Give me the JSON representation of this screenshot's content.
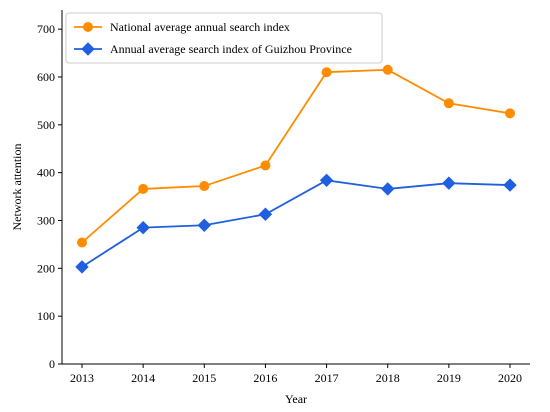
{
  "chart_data": {
    "type": "line",
    "x": [
      2013,
      2014,
      2015,
      2016,
      2017,
      2018,
      2019,
      2020
    ],
    "series": [
      {
        "name": "National average annual search index",
        "values": [
          254,
          366,
          372,
          415,
          610,
          615,
          545,
          524
        ],
        "color": "#ff8c00",
        "marker": "circle"
      },
      {
        "name": "Annual average search index of Guizhou Province",
        "values": [
          203,
          285,
          290,
          313,
          384,
          366,
          378,
          374
        ],
        "color": "#1f5fe0",
        "marker": "diamond"
      }
    ],
    "xlabel": "Year",
    "ylabel": "Network attention",
    "ylim": [
      0,
      740
    ],
    "yticks": [
      0,
      100,
      200,
      300,
      400,
      500,
      600,
      700
    ],
    "grid": false,
    "legend": "top-left"
  }
}
